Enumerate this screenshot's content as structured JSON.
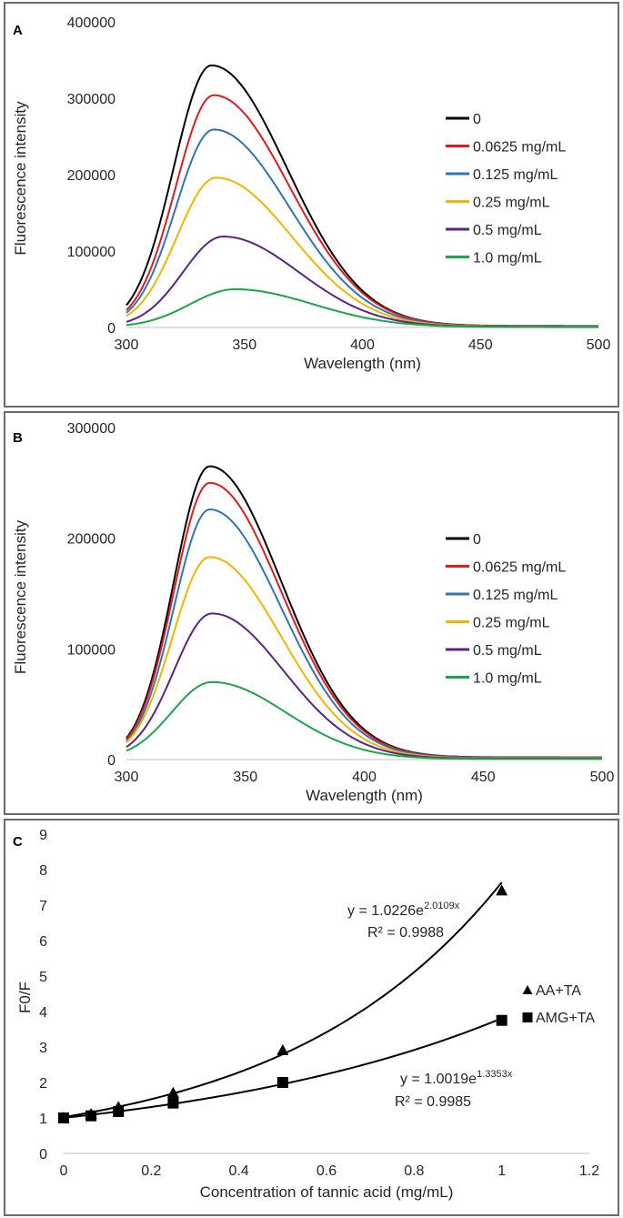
{
  "chart_data": [
    {
      "panel": "A",
      "type": "line",
      "xlabel": "Wavelength (nm)",
      "ylabel": "Fluorescence intensity",
      "xlim": [
        300,
        500
      ],
      "ylim": [
        0,
        400000
      ],
      "xticks": [
        300,
        350,
        400,
        450,
        500
      ],
      "yticks": [
        0,
        100000,
        200000,
        300000,
        400000
      ],
      "legend_position": "right",
      "series": [
        {
          "name": "0",
          "color": "#000000",
          "peak": 343000,
          "peak_x": 336,
          "sigma_left": 16,
          "sigma_right": 32,
          "tail": 2000
        },
        {
          "name": "0.0625 mg/mL",
          "color": "#e41a1c",
          "peak": 304000,
          "peak_x": 337,
          "sigma_left": 16,
          "sigma_right": 32,
          "tail": 1800
        },
        {
          "name": "0.125 mg/mL",
          "color": "#2e75b6",
          "peak": 259000,
          "peak_x": 337,
          "sigma_left": 16,
          "sigma_right": 32,
          "tail": 1500
        },
        {
          "name": "0.25 mg/mL",
          "color": "#f5b400",
          "peak": 196000,
          "peak_x": 338,
          "sigma_left": 16.5,
          "sigma_right": 32,
          "tail": 1200
        },
        {
          "name": "0.5 mg/mL",
          "color": "#5b2386",
          "peak": 119000,
          "peak_x": 341,
          "sigma_left": 17,
          "sigma_right": 32,
          "tail": 900
        },
        {
          "name": "1.0 mg/mL",
          "color": "#1aa64a",
          "peak": 50000,
          "peak_x": 346,
          "sigma_left": 19,
          "sigma_right": 33,
          "tail": 500
        }
      ]
    },
    {
      "panel": "B",
      "type": "line",
      "xlabel": "Wavelength (nm)",
      "ylabel": "Fluorescence intensity",
      "xlim": [
        300,
        500
      ],
      "ylim": [
        0,
        300000
      ],
      "xticks": [
        300,
        350,
        400,
        450,
        500
      ],
      "yticks": [
        0,
        100000,
        200000,
        300000
      ],
      "legend_position": "right",
      "series": [
        {
          "name": "0",
          "color": "#000000",
          "peak": 265000,
          "peak_x": 335,
          "sigma_left": 15,
          "sigma_right": 30,
          "tail": 2000
        },
        {
          "name": "0.0625 mg/mL",
          "color": "#e41a1c",
          "peak": 250000,
          "peak_x": 335,
          "sigma_left": 15,
          "sigma_right": 30,
          "tail": 1800
        },
        {
          "name": "0.125 mg/mL",
          "color": "#2e75b6",
          "peak": 226000,
          "peak_x": 335,
          "sigma_left": 15,
          "sigma_right": 30,
          "tail": 1500
        },
        {
          "name": "0.25 mg/mL",
          "color": "#f5b400",
          "peak": 183000,
          "peak_x": 335,
          "sigma_left": 15.5,
          "sigma_right": 30,
          "tail": 1200
        },
        {
          "name": "0.5 mg/mL",
          "color": "#5b2386",
          "peak": 132000,
          "peak_x": 336,
          "sigma_left": 16,
          "sigma_right": 30,
          "tail": 900
        },
        {
          "name": "1.0 mg/mL",
          "color": "#1aa64a",
          "peak": 70000,
          "peak_x": 336,
          "sigma_left": 17,
          "sigma_right": 31,
          "tail": 500
        }
      ]
    },
    {
      "panel": "C",
      "type": "scatter",
      "xlabel": "Concentration of tannic acid (mg/mL)",
      "ylabel": "F0/F",
      "xlim": [
        0,
        1.2
      ],
      "ylim": [
        0,
        9
      ],
      "xticks": [
        "0",
        "0.2",
        "0.4",
        "0.6",
        "0.8",
        "1",
        "1.2"
      ],
      "yticks": [
        "0",
        "1",
        "2",
        "3",
        "4",
        "5",
        "6",
        "7",
        "8",
        "9"
      ],
      "legend_position": "right",
      "series": [
        {
          "name": "AA+TA",
          "marker": "triangle",
          "x": [
            0,
            0.0625,
            0.125,
            0.25,
            0.5,
            1.0
          ],
          "y": [
            1.0,
            1.1,
            1.3,
            1.7,
            2.9,
            7.4
          ],
          "fit": {
            "a": 1.0226,
            "b": 2.0109
          },
          "equation": "y = 1.0226e",
          "exponent": "2.0109x",
          "r2": "R² = 0.9988"
        },
        {
          "name": "AMG+TA",
          "marker": "square",
          "x": [
            0,
            0.0625,
            0.125,
            0.25,
            0.5,
            1.0
          ],
          "y": [
            1.0,
            1.06,
            1.18,
            1.42,
            2.0,
            3.75
          ],
          "fit": {
            "a": 1.0019,
            "b": 1.3353
          },
          "equation": "y = 1.0019e",
          "exponent": "1.3353x",
          "r2": "R² = 0.9985"
        }
      ]
    }
  ]
}
